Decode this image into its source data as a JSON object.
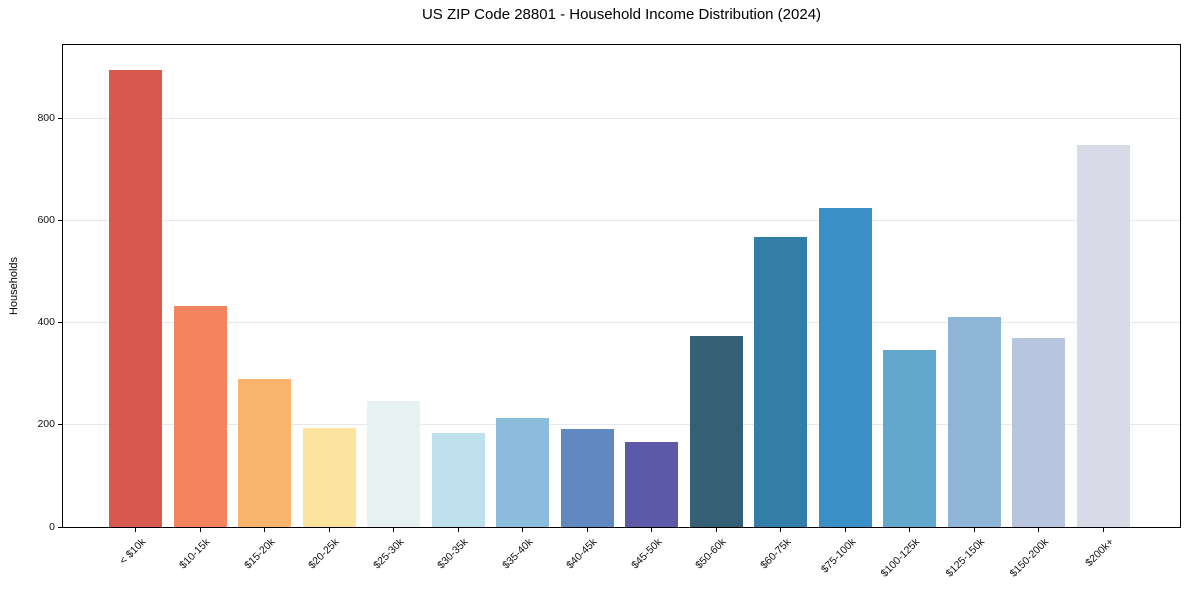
{
  "chart_data": {
    "type": "bar",
    "title": "US ZIP Code 28801 - Household Income Distribution (2024)",
    "xlabel": "",
    "ylabel": "Households",
    "categories": [
      "< $10k",
      "$10-15k",
      "$15-20k",
      "$20-25k",
      "$25-30k",
      "$30-35k",
      "$35-40k",
      "$40-45k",
      "$45-50k",
      "$50-60k",
      "$60-75k",
      "$75-100k",
      "$100-125k",
      "$125-150k",
      "$150-200k",
      "$200k+"
    ],
    "values": [
      895,
      432,
      289,
      193,
      246,
      184,
      214,
      192,
      167,
      374,
      567,
      625,
      347,
      410,
      370,
      748
    ],
    "colors": [
      "#d6584e",
      "#f4845e",
      "#fbb46e",
      "#fde49e",
      "#e5f2f1",
      "#bee0ed",
      "#8cbcdb",
      "#6288c2",
      "#5c5aa8",
      "#355f75",
      "#337ea8",
      "#398fc6",
      "#62a8cc",
      "#90b6d7",
      "#b7c6de",
      "#d8dae8"
    ],
    "yticks": [
      0,
      200,
      400,
      600,
      800
    ],
    "ylim": [
      0,
      943
    ],
    "grid": "horizontal",
    "gridline_color": "#e9e9ed",
    "legend": "none",
    "x_tick_rotation": 45
  }
}
